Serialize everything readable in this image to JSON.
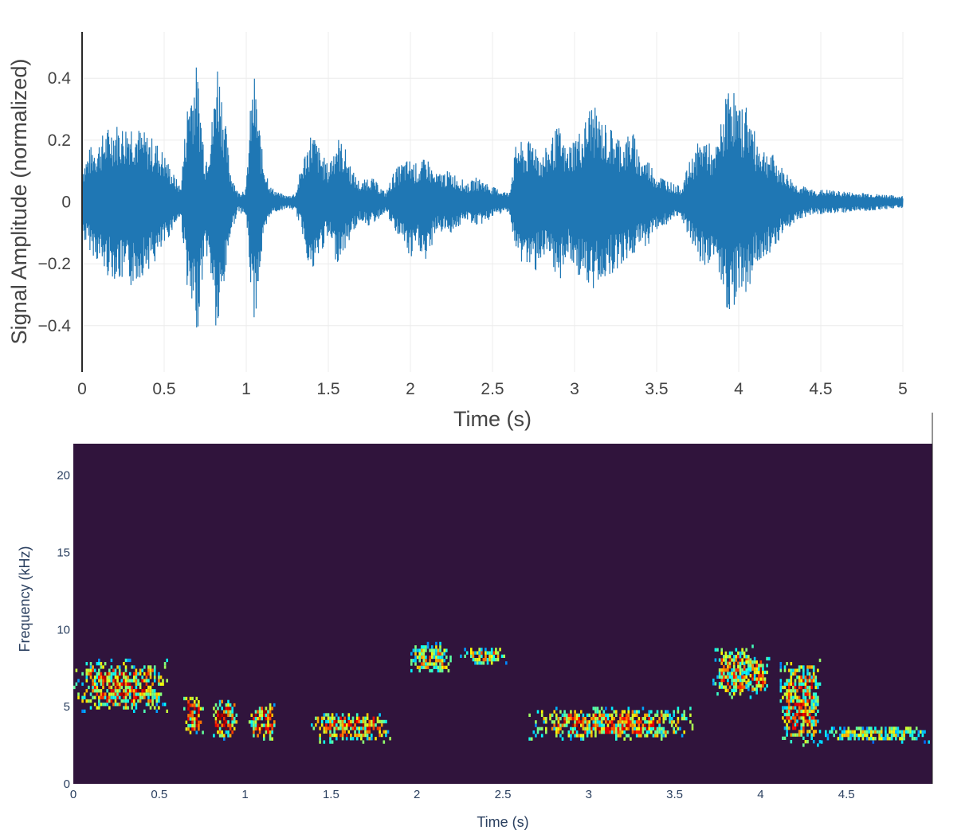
{
  "chart_data": [
    {
      "type": "line",
      "xlabel": "Time (s)",
      "ylabel": "Signal Amplitude (normalized)",
      "xlim": [
        0,
        5
      ],
      "ylim": [
        -0.55,
        0.55
      ],
      "grid": true,
      "line_color": "#1f77b4",
      "x_ticks": [
        {
          "value": 0,
          "label": "0"
        },
        {
          "value": 0.5,
          "label": "0.5"
        },
        {
          "value": 1,
          "label": "1"
        },
        {
          "value": 1.5,
          "label": "1.5"
        },
        {
          "value": 2,
          "label": "2"
        },
        {
          "value": 2.5,
          "label": "2.5"
        },
        {
          "value": 3,
          "label": "3"
        },
        {
          "value": 3.5,
          "label": "3.5"
        },
        {
          "value": 4,
          "label": "4"
        },
        {
          "value": 4.5,
          "label": "4.5"
        },
        {
          "value": 5,
          "label": "5"
        }
      ],
      "y_ticks": [
        {
          "value": 0.4,
          "label": "0.4"
        },
        {
          "value": 0.2,
          "label": "0.2"
        },
        {
          "value": 0,
          "label": "0"
        },
        {
          "value": -0.2,
          "label": "−0.2"
        },
        {
          "value": -0.4,
          "label": "−0.4"
        }
      ],
      "envelope": {
        "t": [
          0,
          0.05,
          0.1,
          0.15,
          0.2,
          0.25,
          0.3,
          0.35,
          0.4,
          0.45,
          0.5,
          0.55,
          0.6,
          0.63,
          0.65,
          0.7,
          0.75,
          0.8,
          0.82,
          0.85,
          0.9,
          0.95,
          1.0,
          1.03,
          1.05,
          1.1,
          1.15,
          1.2,
          1.25,
          1.3,
          1.35,
          1.4,
          1.45,
          1.5,
          1.55,
          1.6,
          1.65,
          1.7,
          1.75,
          1.8,
          1.85,
          1.9,
          1.95,
          2.0,
          2.05,
          2.1,
          2.15,
          2.2,
          2.25,
          2.3,
          2.35,
          2.4,
          2.45,
          2.5,
          2.55,
          2.6,
          2.65,
          2.7,
          2.75,
          2.8,
          2.85,
          2.9,
          2.95,
          3.0,
          3.05,
          3.1,
          3.15,
          3.2,
          3.25,
          3.3,
          3.35,
          3.4,
          3.45,
          3.5,
          3.55,
          3.6,
          3.65,
          3.7,
          3.75,
          3.8,
          3.85,
          3.9,
          3.95,
          4.0,
          4.05,
          4.1,
          4.15,
          4.2,
          4.25,
          4.3,
          4.35,
          4.4,
          4.45,
          4.5,
          4.55,
          4.6,
          4.65,
          4.7,
          4.75,
          4.8,
          4.85,
          4.9,
          4.95,
          5.0
        ],
        "upper": [
          0.12,
          0.18,
          0.2,
          0.24,
          0.26,
          0.25,
          0.27,
          0.24,
          0.22,
          0.2,
          0.16,
          0.1,
          0.05,
          0.25,
          0.38,
          0.45,
          0.15,
          0.3,
          0.5,
          0.38,
          0.12,
          0.03,
          0.05,
          0.35,
          0.41,
          0.15,
          0.05,
          0.03,
          0.02,
          0.03,
          0.15,
          0.24,
          0.17,
          0.12,
          0.22,
          0.18,
          0.1,
          0.06,
          0.09,
          0.06,
          0.03,
          0.1,
          0.13,
          0.14,
          0.12,
          0.15,
          0.09,
          0.1,
          0.1,
          0.08,
          0.06,
          0.08,
          0.07,
          0.05,
          0.04,
          0.03,
          0.21,
          0.18,
          0.22,
          0.15,
          0.2,
          0.25,
          0.17,
          0.22,
          0.24,
          0.33,
          0.28,
          0.25,
          0.23,
          0.2,
          0.24,
          0.15,
          0.14,
          0.09,
          0.08,
          0.06,
          0.05,
          0.13,
          0.19,
          0.22,
          0.15,
          0.28,
          0.42,
          0.3,
          0.33,
          0.22,
          0.18,
          0.16,
          0.12,
          0.09,
          0.06,
          0.05,
          0.04,
          0.04,
          0.04,
          0.035,
          0.035,
          0.03,
          0.03,
          0.03,
          0.025,
          0.025,
          0.02,
          0.02
        ],
        "lower": [
          -0.12,
          -0.16,
          -0.2,
          -0.24,
          -0.25,
          -0.27,
          -0.28,
          -0.25,
          -0.22,
          -0.2,
          -0.15,
          -0.09,
          -0.05,
          -0.2,
          -0.35,
          -0.44,
          -0.15,
          -0.3,
          -0.48,
          -0.36,
          -0.12,
          -0.03,
          -0.05,
          -0.3,
          -0.4,
          -0.15,
          -0.04,
          -0.03,
          -0.02,
          -0.03,
          -0.12,
          -0.26,
          -0.17,
          -0.12,
          -0.2,
          -0.16,
          -0.1,
          -0.06,
          -0.08,
          -0.06,
          -0.03,
          -0.1,
          -0.12,
          -0.2,
          -0.15,
          -0.22,
          -0.1,
          -0.1,
          -0.1,
          -0.08,
          -0.06,
          -0.08,
          -0.07,
          -0.05,
          -0.04,
          -0.03,
          -0.2,
          -0.2,
          -0.24,
          -0.18,
          -0.22,
          -0.28,
          -0.18,
          -0.23,
          -0.25,
          -0.32,
          -0.25,
          -0.25,
          -0.22,
          -0.2,
          -0.18,
          -0.15,
          -0.14,
          -0.09,
          -0.08,
          -0.06,
          -0.05,
          -0.13,
          -0.19,
          -0.23,
          -0.17,
          -0.3,
          -0.38,
          -0.28,
          -0.3,
          -0.22,
          -0.18,
          -0.16,
          -0.12,
          -0.09,
          -0.06,
          -0.05,
          -0.04,
          -0.04,
          -0.04,
          -0.035,
          -0.035,
          -0.03,
          -0.03,
          -0.03,
          -0.025,
          -0.025,
          -0.02,
          -0.02
        ]
      }
    },
    {
      "type": "heatmap",
      "xlabel": "Time (s)",
      "ylabel": "Frequency (kHz)",
      "xlim": [
        0,
        5
      ],
      "ylim": [
        0,
        22.05
      ],
      "colorscale": "jet",
      "background_color": "#30143c",
      "x_ticks": [
        {
          "value": 0,
          "label": "0"
        },
        {
          "value": 0.5,
          "label": "0.5"
        },
        {
          "value": 1,
          "label": "1"
        },
        {
          "value": 1.5,
          "label": "1.5"
        },
        {
          "value": 2,
          "label": "2"
        },
        {
          "value": 2.5,
          "label": "2.5"
        },
        {
          "value": 3,
          "label": "3"
        },
        {
          "value": 3.5,
          "label": "3.5"
        },
        {
          "value": 4,
          "label": "4"
        },
        {
          "value": 4.5,
          "label": "4.5"
        }
      ],
      "y_ticks": [
        {
          "value": 0,
          "label": "0"
        },
        {
          "value": 5,
          "label": "5"
        },
        {
          "value": 10,
          "label": "10"
        },
        {
          "value": 15,
          "label": "15"
        },
        {
          "value": 20,
          "label": "20"
        }
      ],
      "energy_regions": [
        {
          "t0": 0.0,
          "t1": 0.55,
          "f0": 4.6,
          "f1": 7.9,
          "intensity": 0.85
        },
        {
          "t0": 0.64,
          "t1": 0.75,
          "f0": 3.0,
          "f1": 5.6,
          "intensity": 0.9
        },
        {
          "t0": 0.8,
          "t1": 0.95,
          "f0": 2.8,
          "f1": 5.4,
          "intensity": 0.95
        },
        {
          "t0": 1.02,
          "t1": 1.18,
          "f0": 2.8,
          "f1": 5.2,
          "intensity": 0.9
        },
        {
          "t0": 1.37,
          "t1": 1.85,
          "f0": 2.6,
          "f1": 4.5,
          "intensity": 0.85
        },
        {
          "t0": 1.95,
          "t1": 2.2,
          "f0": 7.0,
          "f1": 9.0,
          "intensity": 0.7
        },
        {
          "t0": 2.25,
          "t1": 2.52,
          "f0": 7.5,
          "f1": 8.8,
          "intensity": 0.7
        },
        {
          "t0": 2.65,
          "t1": 3.6,
          "f0": 2.8,
          "f1": 4.8,
          "intensity": 0.85
        },
        {
          "t0": 3.72,
          "t1": 3.95,
          "f0": 5.5,
          "f1": 8.8,
          "intensity": 0.8
        },
        {
          "t0": 3.9,
          "t1": 4.05,
          "f0": 5.8,
          "f1": 8.2,
          "intensity": 0.9
        },
        {
          "t0": 4.1,
          "t1": 4.35,
          "f0": 2.4,
          "f1": 8.0,
          "intensity": 0.85
        },
        {
          "t0": 4.35,
          "t1": 5.0,
          "f0": 2.6,
          "f1": 3.6,
          "intensity": 0.6
        }
      ]
    }
  ]
}
